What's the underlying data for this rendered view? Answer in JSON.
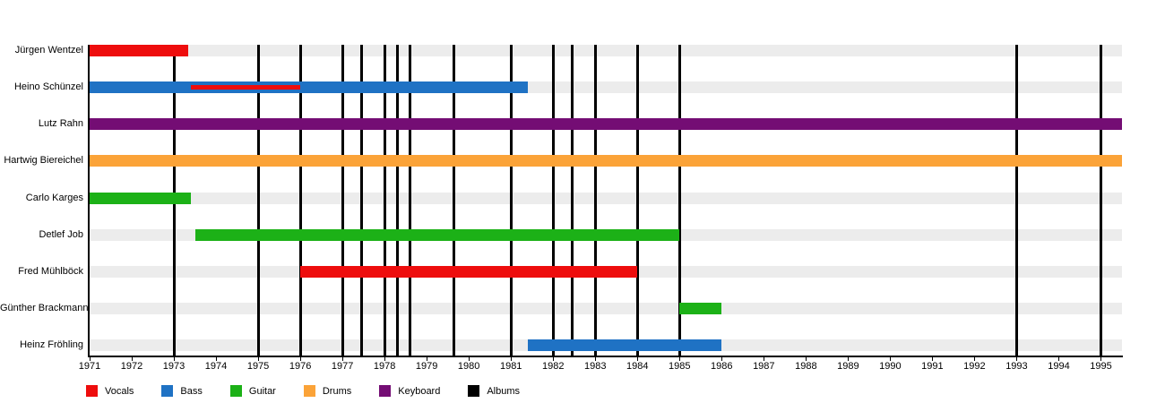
{
  "chart_data": {
    "type": "bar",
    "subtype": "band-membership-timeline-gantt",
    "title": "",
    "x_axis": {
      "min": 1971,
      "max": 1995.5,
      "ticks": [
        1971,
        1972,
        1973,
        1974,
        1975,
        1976,
        1977,
        1978,
        1979,
        1980,
        1981,
        1982,
        1983,
        1984,
        1985,
        1986,
        1987,
        1988,
        1989,
        1990,
        1991,
        1992,
        1993,
        1994,
        1995
      ]
    },
    "rows": [
      {
        "name": "Jürgen Wentzel",
        "bars": [
          {
            "role": "Vocals",
            "start": 1971,
            "end": 1973.35
          }
        ]
      },
      {
        "name": "Heino Schünzel",
        "bars": [
          {
            "role": "Bass",
            "start": 1971,
            "end": 1981.4
          },
          {
            "role": "Vocals",
            "start": 1973.4,
            "end": 1976,
            "overlay": true
          }
        ]
      },
      {
        "name": "Lutz Rahn",
        "bars": [
          {
            "role": "Keyboard",
            "start": 1971,
            "end": 1995.5
          }
        ]
      },
      {
        "name": "Hartwig Biereichel",
        "bars": [
          {
            "role": "Drums",
            "start": 1971,
            "end": 1995.5
          }
        ]
      },
      {
        "name": "Carlo Karges",
        "bars": [
          {
            "role": "Guitar",
            "start": 1971,
            "end": 1973.4
          }
        ]
      },
      {
        "name": "Detlef Job",
        "bars": [
          {
            "role": "Guitar",
            "start": 1973.5,
            "end": 1985
          }
        ]
      },
      {
        "name": "Fred Mühlböck",
        "bars": [
          {
            "role": "Vocals",
            "start": 1976,
            "end": 1984
          }
        ]
      },
      {
        "name": "Günther Brackmann",
        "bars": [
          {
            "role": "Guitar",
            "start": 1985,
            "end": 1986
          }
        ]
      },
      {
        "name": "Heinz Fröhling",
        "bars": [
          {
            "role": "Bass",
            "start": 1981.4,
            "end": 1986
          }
        ]
      }
    ],
    "album_lines": {
      "label": "Albums",
      "years": [
        1973,
        1975,
        1976,
        1977,
        1977.45,
        1978,
        1978.3,
        1978.6,
        1979.65,
        1981,
        1982,
        1982.45,
        1983,
        1984,
        1985,
        1993,
        1995
      ]
    },
    "legend": [
      {
        "label": "Vocals",
        "color": "#ee0d0d"
      },
      {
        "label": "Bass",
        "color": "#1f72c4"
      },
      {
        "label": "Guitar",
        "color": "#1cb117"
      },
      {
        "label": "Drums",
        "color": "#fba338"
      },
      {
        "label": "Keyboard",
        "color": "#740d74"
      },
      {
        "label": "Albums",
        "color": "#000000"
      }
    ],
    "colors": {
      "Vocals": "#ee0d0d",
      "Bass": "#1f72c4",
      "Guitar": "#1cb117",
      "Drums": "#fba338",
      "Keyboard": "#740d74",
      "Albums": "#000000"
    },
    "row_band_color": "#ececec",
    "axis_color": "#000000",
    "legend_position": "bottom",
    "grid": false
  }
}
